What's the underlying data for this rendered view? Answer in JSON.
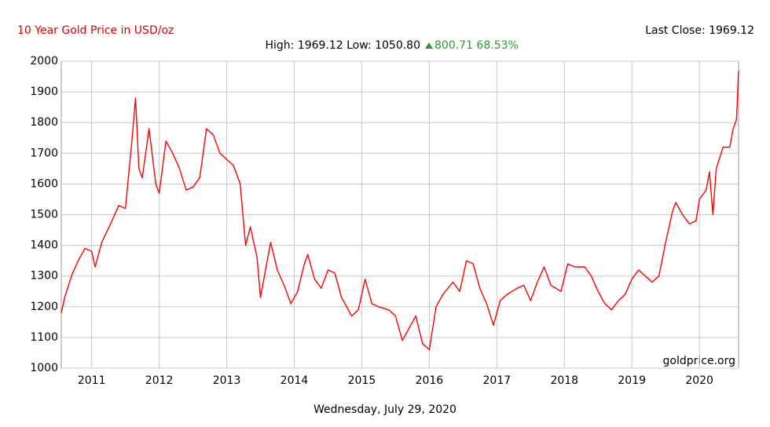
{
  "chart_data": {
    "type": "line",
    "title": "10 Year Gold Price in USD/oz",
    "last_close": "Last Close: 1969.12",
    "high_low": "High: 1969.12 Low: 1050.80",
    "change": "800.71 68.53%",
    "watermark": "goldprice.org",
    "date": "Wednesday, July 29, 2020",
    "color": "#ff0000",
    "grid": true,
    "xlim": [
      2010.55,
      2020.58
    ],
    "xticks": [
      2011,
      2012,
      2013,
      2014,
      2015,
      2016,
      2017,
      2018,
      2019,
      2020
    ],
    "ylim": [
      1000,
      2000
    ],
    "yticks": [
      1000,
      1100,
      1200,
      1300,
      1400,
      1500,
      1600,
      1700,
      1800,
      1900,
      2000
    ],
    "x": [
      2010.55,
      2010.6,
      2010.7,
      2010.8,
      2010.9,
      2011.0,
      2011.05,
      2011.15,
      2011.3,
      2011.4,
      2011.5,
      2011.6,
      2011.65,
      2011.7,
      2011.75,
      2011.85,
      2011.95,
      2012.0,
      2012.1,
      2012.2,
      2012.3,
      2012.4,
      2012.5,
      2012.6,
      2012.7,
      2012.8,
      2012.9,
      2013.0,
      2013.1,
      2013.2,
      2013.28,
      2013.35,
      2013.45,
      2013.5,
      2013.6,
      2013.65,
      2013.75,
      2013.85,
      2013.95,
      2014.05,
      2014.15,
      2014.2,
      2014.3,
      2014.4,
      2014.5,
      2014.6,
      2014.7,
      2014.85,
      2014.95,
      2015.05,
      2015.15,
      2015.25,
      2015.4,
      2015.5,
      2015.6,
      2015.7,
      2015.8,
      2015.9,
      2016.0,
      2016.1,
      2016.2,
      2016.35,
      2016.45,
      2016.55,
      2016.65,
      2016.75,
      2016.85,
      2016.95,
      2017.05,
      2017.15,
      2017.3,
      2017.4,
      2017.5,
      2017.6,
      2017.7,
      2017.8,
      2017.95,
      2018.05,
      2018.15,
      2018.3,
      2018.4,
      2018.5,
      2018.6,
      2018.7,
      2018.8,
      2018.9,
      2019.0,
      2019.1,
      2019.2,
      2019.3,
      2019.4,
      2019.5,
      2019.6,
      2019.65,
      2019.75,
      2019.85,
      2019.95,
      2020.0,
      2020.1,
      2020.15,
      2020.2,
      2020.25,
      2020.35,
      2020.45,
      2020.5,
      2020.55,
      2020.58
    ],
    "values": [
      1180,
      1230,
      1300,
      1350,
      1390,
      1380,
      1330,
      1410,
      1480,
      1530,
      1520,
      1750,
      1880,
      1650,
      1620,
      1780,
      1600,
      1570,
      1740,
      1700,
      1650,
      1580,
      1590,
      1620,
      1780,
      1760,
      1700,
      1680,
      1660,
      1600,
      1400,
      1460,
      1360,
      1230,
      1350,
      1410,
      1320,
      1270,
      1210,
      1250,
      1340,
      1370,
      1290,
      1260,
      1320,
      1310,
      1230,
      1170,
      1190,
      1290,
      1210,
      1200,
      1190,
      1170,
      1090,
      1130,
      1170,
      1080,
      1060,
      1200,
      1240,
      1280,
      1250,
      1350,
      1340,
      1260,
      1210,
      1140,
      1220,
      1240,
      1260,
      1270,
      1220,
      1280,
      1330,
      1270,
      1250,
      1340,
      1330,
      1330,
      1300,
      1250,
      1210,
      1190,
      1220,
      1240,
      1290,
      1320,
      1300,
      1280,
      1300,
      1410,
      1510,
      1540,
      1500,
      1470,
      1480,
      1550,
      1580,
      1640,
      1500,
      1650,
      1720,
      1720,
      1780,
      1810,
      1969.12
    ]
  }
}
